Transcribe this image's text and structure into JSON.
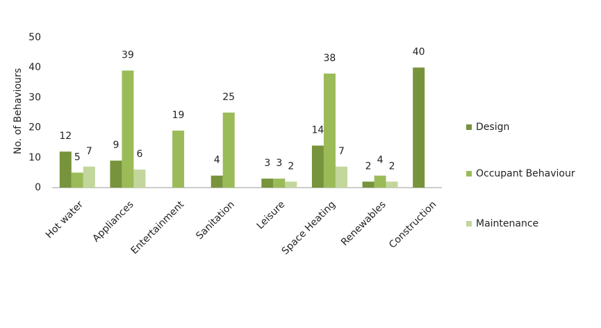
{
  "chart_data": {
    "type": "bar",
    "y_label": "No. of Behaviours",
    "categories": [
      "Hot water",
      "Appliances",
      "Entertainment",
      "Sanitation",
      "Leisure",
      "Space Heating",
      "Renewables",
      "Construction"
    ],
    "series": [
      {
        "name": "Design",
        "color": "#77933c",
        "values": [
          12,
          9,
          null,
          4,
          3,
          14,
          2,
          40
        ]
      },
      {
        "name": "Occupant Behaviour",
        "color": "#9bbb59",
        "values": [
          5,
          39,
          19,
          25,
          3,
          38,
          4,
          null
        ]
      },
      {
        "name": "Maintenance",
        "color": "#c3d69b",
        "values": [
          7,
          6,
          null,
          null,
          2,
          7,
          2,
          null
        ]
      }
    ],
    "ylim": [
      0,
      50
    ],
    "yticks": [
      0,
      10,
      20,
      30,
      40,
      50
    ],
    "grid": false,
    "legend": "right"
  }
}
